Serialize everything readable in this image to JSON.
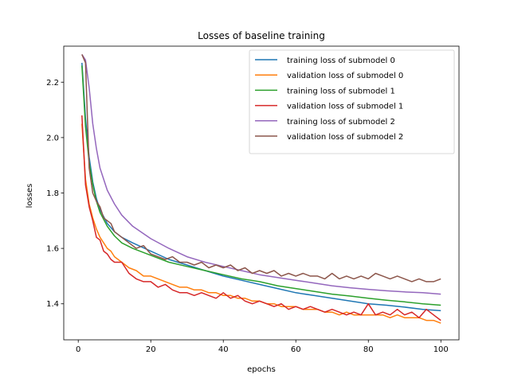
{
  "chart_data": {
    "type": "line",
    "title": "Losses of baseline training",
    "xlabel": "epochs",
    "ylabel": "losses",
    "xlim": [
      -4,
      105
    ],
    "ylim": [
      1.27,
      2.33
    ],
    "xticks": [
      0,
      20,
      40,
      60,
      80,
      100
    ],
    "yticks": [
      1.4,
      1.6,
      1.8,
      2.0,
      2.2
    ],
    "grid": false,
    "legend_position": "top-right",
    "series": [
      {
        "name": "training loss of submodel 0",
        "color": "#1f77b4",
        "x": [
          1,
          2,
          3,
          4,
          5,
          6,
          8,
          10,
          12,
          15,
          20,
          25,
          30,
          35,
          40,
          45,
          50,
          55,
          60,
          65,
          70,
          75,
          80,
          85,
          90,
          95,
          100
        ],
        "y": [
          2.27,
          2.07,
          1.93,
          1.84,
          1.78,
          1.74,
          1.69,
          1.66,
          1.64,
          1.62,
          1.59,
          1.56,
          1.54,
          1.52,
          1.5,
          1.485,
          1.47,
          1.455,
          1.44,
          1.43,
          1.42,
          1.41,
          1.4,
          1.395,
          1.388,
          1.38,
          1.375
        ]
      },
      {
        "name": "validation loss of submodel 0",
        "color": "#ff7f0e",
        "x": [
          1,
          2,
          3,
          4,
          5,
          6,
          7,
          8,
          9,
          10,
          12,
          14,
          16,
          18,
          20,
          22,
          24,
          26,
          28,
          30,
          32,
          34,
          36,
          38,
          40,
          42,
          44,
          46,
          48,
          50,
          52,
          54,
          56,
          58,
          60,
          62,
          64,
          66,
          68,
          70,
          72,
          74,
          76,
          78,
          80,
          82,
          84,
          86,
          88,
          90,
          92,
          94,
          96,
          98,
          100
        ],
        "y": [
          2.05,
          1.85,
          1.76,
          1.71,
          1.67,
          1.64,
          1.62,
          1.6,
          1.59,
          1.57,
          1.55,
          1.53,
          1.52,
          1.5,
          1.5,
          1.49,
          1.48,
          1.47,
          1.46,
          1.46,
          1.45,
          1.45,
          1.44,
          1.44,
          1.43,
          1.43,
          1.42,
          1.42,
          1.41,
          1.41,
          1.4,
          1.4,
          1.39,
          1.39,
          1.39,
          1.38,
          1.38,
          1.38,
          1.37,
          1.37,
          1.36,
          1.37,
          1.36,
          1.36,
          1.36,
          1.36,
          1.36,
          1.35,
          1.36,
          1.35,
          1.35,
          1.35,
          1.34,
          1.34,
          1.33
        ]
      },
      {
        "name": "training loss of submodel 1",
        "color": "#2ca02c",
        "x": [
          1,
          2,
          3,
          4,
          5,
          6,
          8,
          10,
          12,
          15,
          20,
          25,
          30,
          35,
          40,
          45,
          50,
          55,
          60,
          65,
          70,
          75,
          80,
          85,
          90,
          95,
          100
        ],
        "y": [
          2.26,
          2.04,
          1.91,
          1.83,
          1.77,
          1.73,
          1.68,
          1.645,
          1.62,
          1.6,
          1.575,
          1.55,
          1.535,
          1.52,
          1.505,
          1.49,
          1.48,
          1.465,
          1.455,
          1.445,
          1.435,
          1.428,
          1.42,
          1.413,
          1.407,
          1.4,
          1.395
        ]
      },
      {
        "name": "validation loss of submodel 1",
        "color": "#d62728",
        "x": [
          1,
          2,
          3,
          4,
          5,
          6,
          7,
          8,
          9,
          10,
          12,
          14,
          16,
          18,
          20,
          22,
          24,
          26,
          28,
          30,
          32,
          34,
          36,
          38,
          40,
          42,
          44,
          46,
          48,
          50,
          52,
          54,
          56,
          58,
          60,
          62,
          64,
          66,
          68,
          70,
          72,
          74,
          76,
          78,
          80,
          82,
          84,
          86,
          88,
          90,
          92,
          94,
          96,
          98,
          100
        ],
        "y": [
          2.08,
          1.83,
          1.75,
          1.7,
          1.64,
          1.63,
          1.59,
          1.58,
          1.56,
          1.55,
          1.55,
          1.51,
          1.49,
          1.48,
          1.48,
          1.46,
          1.47,
          1.45,
          1.44,
          1.44,
          1.43,
          1.44,
          1.43,
          1.42,
          1.44,
          1.42,
          1.43,
          1.41,
          1.4,
          1.41,
          1.4,
          1.39,
          1.4,
          1.38,
          1.39,
          1.38,
          1.39,
          1.38,
          1.37,
          1.38,
          1.37,
          1.36,
          1.37,
          1.36,
          1.4,
          1.36,
          1.37,
          1.36,
          1.38,
          1.36,
          1.37,
          1.35,
          1.38,
          1.36,
          1.34
        ]
      },
      {
        "name": "training loss of submodel 2",
        "color": "#9467bd",
        "x": [
          1,
          2,
          3,
          4,
          5,
          6,
          8,
          10,
          12,
          15,
          20,
          25,
          30,
          35,
          40,
          45,
          50,
          55,
          60,
          65,
          70,
          75,
          80,
          85,
          90,
          95,
          100
        ],
        "y": [
          2.3,
          2.28,
          2.18,
          2.05,
          1.96,
          1.89,
          1.81,
          1.76,
          1.72,
          1.68,
          1.635,
          1.6,
          1.57,
          1.55,
          1.535,
          1.52,
          1.505,
          1.495,
          1.485,
          1.475,
          1.465,
          1.458,
          1.452,
          1.447,
          1.443,
          1.44,
          1.435
        ]
      },
      {
        "name": "validation loss of submodel 2",
        "color": "#8c564b",
        "x": [
          1,
          2,
          3,
          4,
          5,
          6,
          7,
          8,
          9,
          10,
          12,
          14,
          16,
          18,
          20,
          22,
          24,
          26,
          28,
          30,
          32,
          34,
          36,
          38,
          40,
          42,
          44,
          46,
          48,
          50,
          52,
          54,
          56,
          58,
          60,
          62,
          64,
          66,
          68,
          70,
          72,
          74,
          76,
          78,
          80,
          82,
          84,
          86,
          88,
          90,
          92,
          94,
          96,
          98,
          100
        ],
        "y": [
          2.3,
          2.27,
          1.89,
          1.8,
          1.77,
          1.75,
          1.71,
          1.7,
          1.69,
          1.66,
          1.64,
          1.62,
          1.6,
          1.61,
          1.58,
          1.57,
          1.56,
          1.57,
          1.55,
          1.55,
          1.54,
          1.55,
          1.53,
          1.54,
          1.53,
          1.54,
          1.52,
          1.53,
          1.51,
          1.52,
          1.51,
          1.52,
          1.5,
          1.51,
          1.5,
          1.51,
          1.5,
          1.5,
          1.49,
          1.51,
          1.49,
          1.5,
          1.49,
          1.5,
          1.49,
          1.51,
          1.5,
          1.49,
          1.5,
          1.49,
          1.48,
          1.49,
          1.48,
          1.48,
          1.49
        ]
      }
    ]
  }
}
